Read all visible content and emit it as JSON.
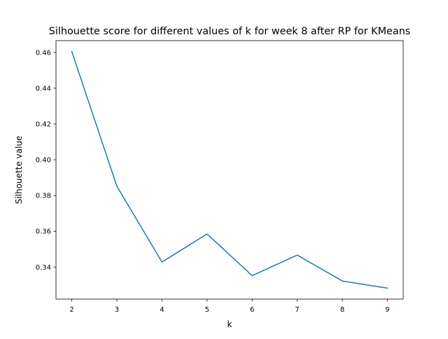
{
  "chart_data": {
    "type": "line",
    "title": "Silhouette score for different values of k for week 8 after RP for KMeans",
    "xlabel": "k",
    "ylabel": "Silhouette value",
    "x": [
      2,
      3,
      4,
      5,
      6,
      7,
      8,
      9
    ],
    "series": [
      {
        "values": [
          0.4605,
          0.3852,
          0.3428,
          0.3585,
          0.3352,
          0.3467,
          0.3322,
          0.3282
        ],
        "color": "#1f77b4"
      }
    ],
    "xlim": [
      1.65,
      9.35
    ],
    "ylim": [
      0.3221,
      0.4666
    ],
    "xticks": [
      2,
      3,
      4,
      5,
      6,
      7,
      8,
      9
    ],
    "yticks": [
      0.34,
      0.36,
      0.38,
      0.4,
      0.42,
      0.44,
      0.46
    ],
    "ytick_labels": [
      "0.34",
      "0.36",
      "0.38",
      "0.40",
      "0.42",
      "0.44",
      "0.46"
    ],
    "grid": false,
    "legend": false
  }
}
